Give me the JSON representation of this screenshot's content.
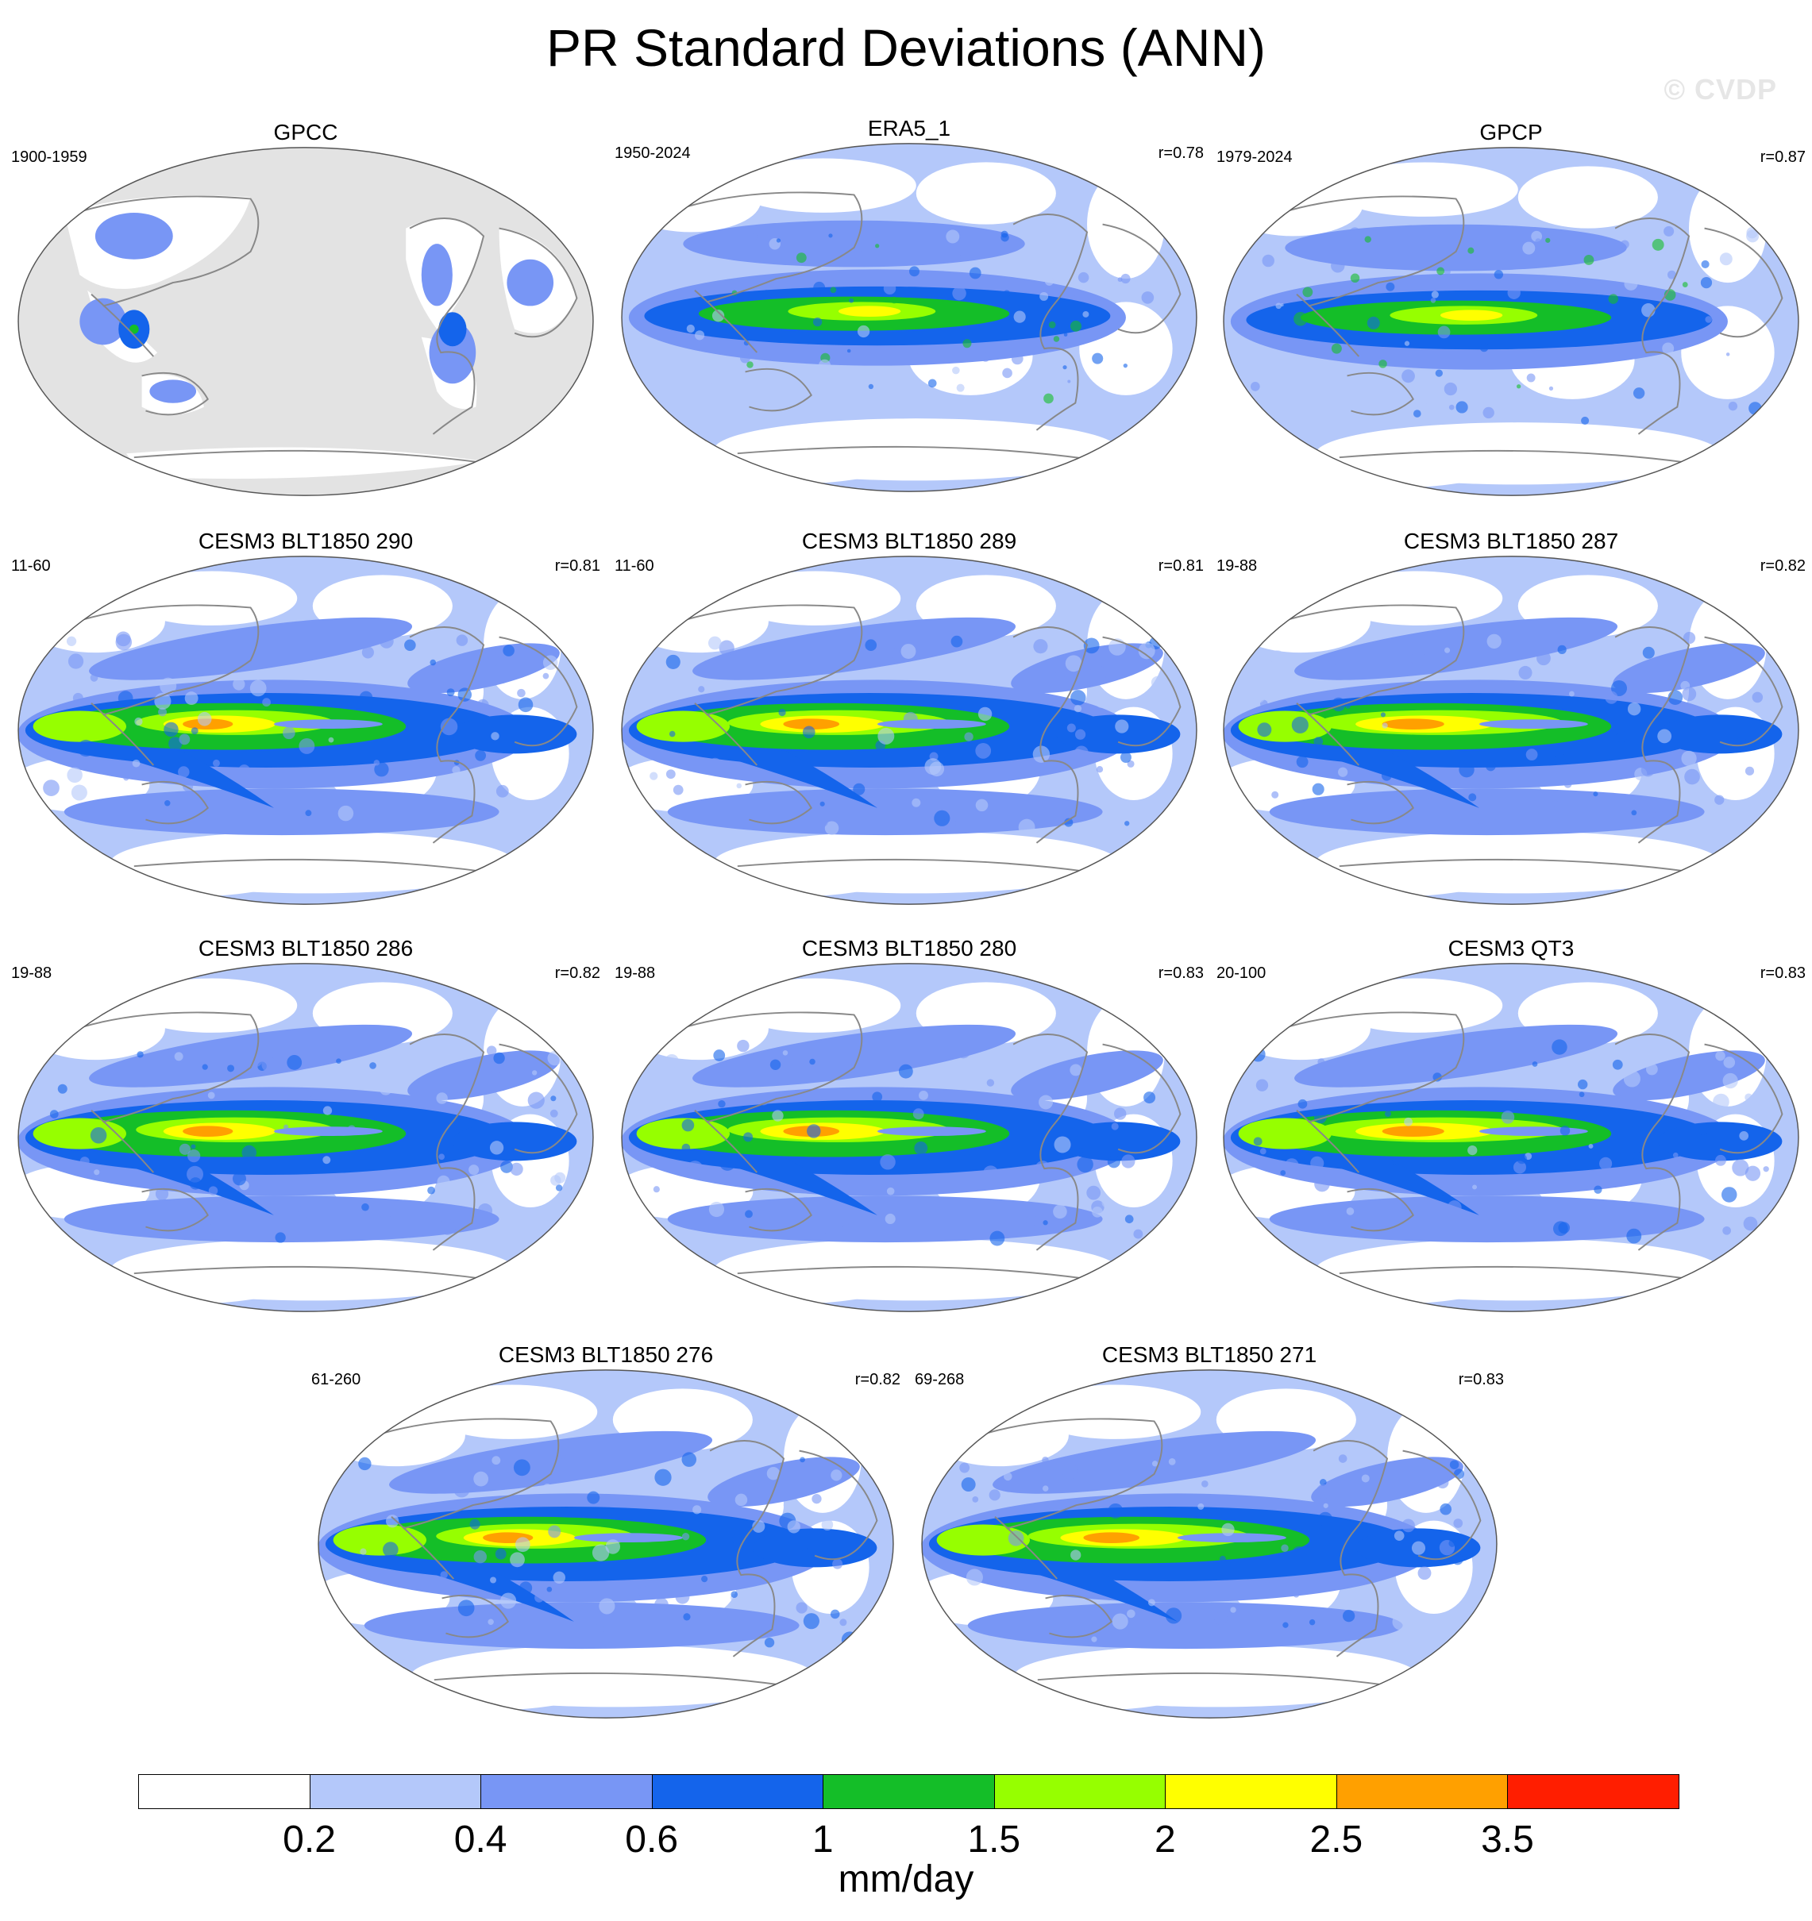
{
  "figure": {
    "title": "PR Standard Deviations (ANN)",
    "watermark": "© CVDP",
    "panels": [
      {
        "title": "GPCC",
        "left": "1900-1959",
        "right": "",
        "masked": true
      },
      {
        "title": "ERA5_1",
        "left": "1950-2024",
        "right": "r=0.78",
        "masked": false
      },
      {
        "title": "GPCP",
        "left": "1979-2024",
        "right": "r=0.87",
        "masked": false
      },
      {
        "title": "CESM3 BLT1850 290",
        "left": "11-60",
        "right": "r=0.81",
        "masked": false
      },
      {
        "title": "CESM3 BLT1850 289",
        "left": "11-60",
        "right": "r=0.81",
        "masked": false
      },
      {
        "title": "CESM3 BLT1850 287",
        "left": "19-88",
        "right": "r=0.82",
        "masked": false
      },
      {
        "title": "CESM3 BLT1850 286",
        "left": "19-88",
        "right": "r=0.82",
        "masked": false
      },
      {
        "title": "CESM3 BLT1850 280",
        "left": "19-88",
        "right": "r=0.83",
        "masked": false
      },
      {
        "title": "CESM3 QT3",
        "left": "20-100",
        "right": "r=0.83",
        "masked": false
      },
      {
        "title": "CESM3 BLT1850 276",
        "left": "61-260",
        "right": "r=0.82",
        "masked": false
      },
      {
        "title": "CESM3 BLT1850 271",
        "left": "69-268",
        "right": "r=0.83",
        "masked": false
      }
    ]
  },
  "colorbar": {
    "levels": [
      "0.2",
      "0.4",
      "0.6",
      "1",
      "1.5",
      "2",
      "2.5",
      "3.5"
    ],
    "colors": [
      "#ffffff",
      "#b4c8fa",
      "#7896f5",
      "#1464eb",
      "#14be28",
      "#96ff00",
      "#ffff00",
      "#ffa000",
      "#ff1e00"
    ],
    "units": "mm/day"
  },
  "colors": {
    "land_mask": "#e3e3e3",
    "coastline": "#888888",
    "map_outline": "#555555"
  }
}
